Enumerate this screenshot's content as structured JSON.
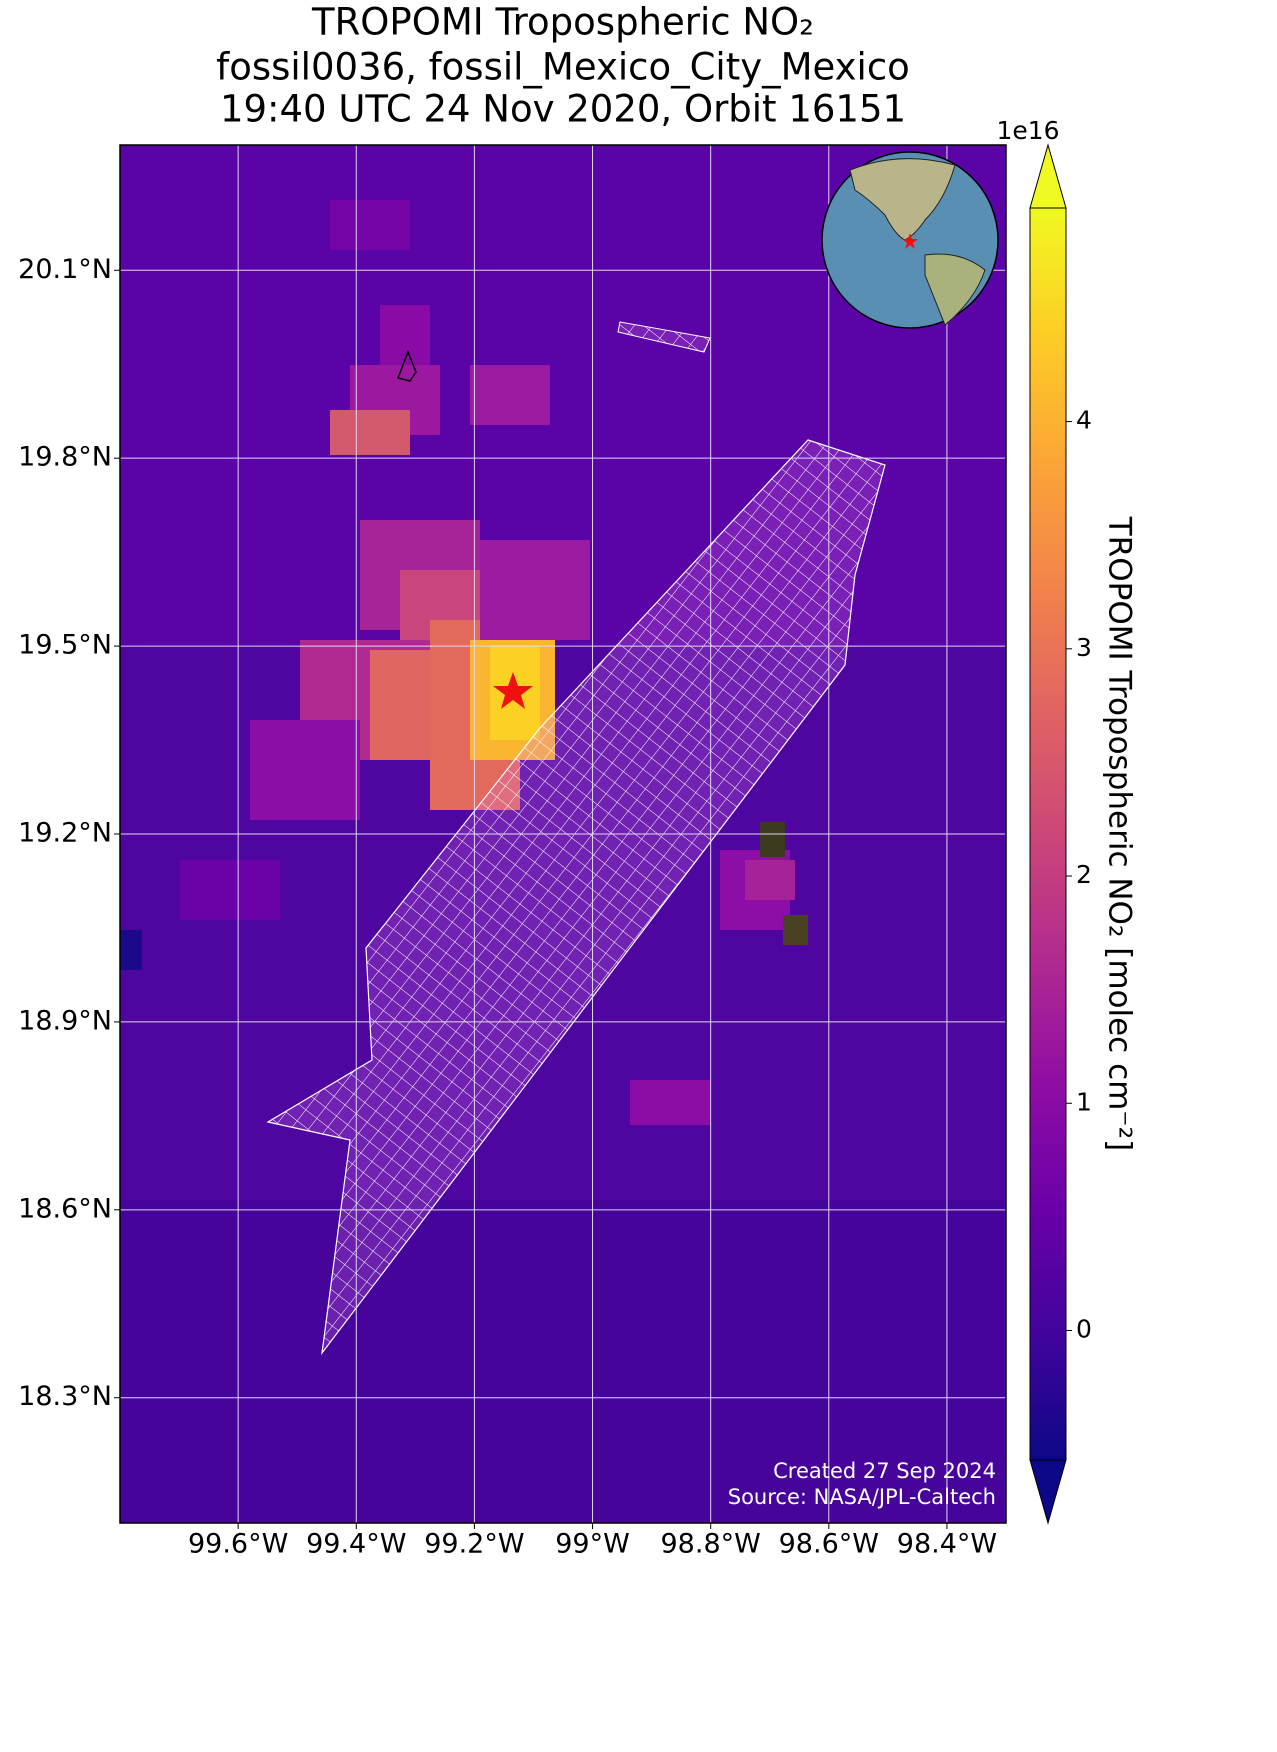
{
  "map": {
    "title": [
      "TROPOMI Tropospheric NO₂",
      "fossil0036, fossil_Mexico_City_Mexico",
      "19:40 UTC 24 Nov 2020, Orbit 16151"
    ],
    "xlim": [
      -99.8,
      -98.3
    ],
    "ylim": [
      18.1,
      20.3
    ],
    "xticks": [
      {
        "value": -99.6,
        "label": "99.6°W"
      },
      {
        "value": -99.4,
        "label": "99.4°W"
      },
      {
        "value": -99.2,
        "label": "99.2°W"
      },
      {
        "value": -99,
        "label": "99°W"
      },
      {
        "value": -98.8,
        "label": "98.8°W"
      },
      {
        "value": -98.6,
        "label": "98.6°W"
      },
      {
        "value": -98.4,
        "label": "98.4°W"
      }
    ],
    "yticks": [
      {
        "value": 20.1,
        "label": "20.1°N"
      },
      {
        "value": 19.8,
        "label": "19.8°N"
      },
      {
        "value": 19.5,
        "label": "19.5°N"
      },
      {
        "value": 19.2,
        "label": "19.2°N"
      },
      {
        "value": 18.9,
        "label": "18.9°N"
      },
      {
        "value": 18.6,
        "label": "18.6°N"
      },
      {
        "value": 18.3,
        "label": "18.3°N"
      }
    ],
    "grid": true,
    "colorbar": {
      "label": "TROPOMI Tropospheric NO₂ [molec cm⁻²]",
      "scale_label": "1e16",
      "lim": [
        -0.57,
        4.94
      ],
      "ticks": [
        0,
        1,
        2,
        3,
        4
      ]
    },
    "credits": [
      "Created 27 Sep 2024",
      "Source: NASA/JPL-Caltech"
    ]
  }
}
